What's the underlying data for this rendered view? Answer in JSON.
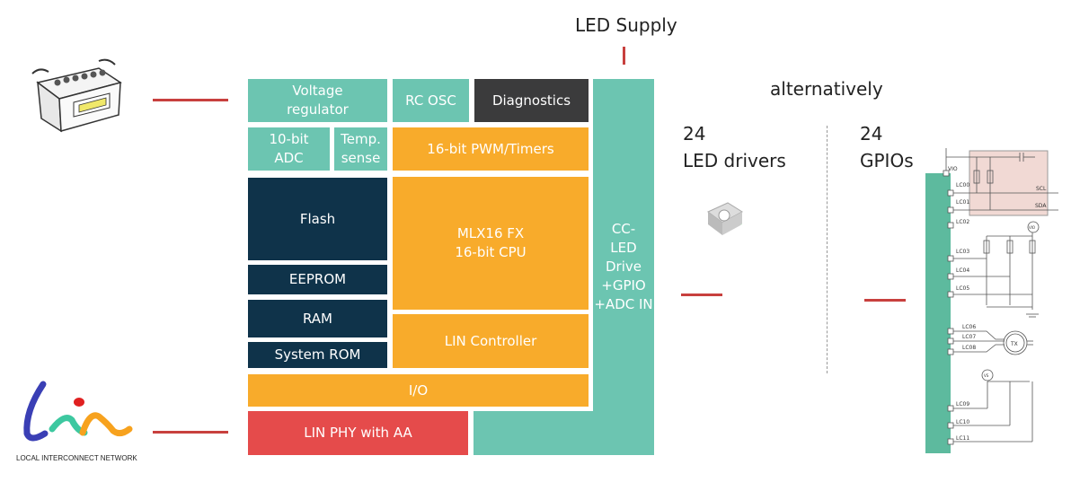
{
  "labels": {
    "led_supply": "LED Supply",
    "alternatively": "alternatively",
    "led_count": "24",
    "led_drivers": "LED drivers",
    "gpio_count": "24",
    "gpios": "GPIOs"
  },
  "blocks": {
    "voltage_regulator": "Voltage regulator",
    "rc_osc": "RC OSC",
    "diagnostics": "Diagnostics",
    "adc": "10-bit ADC",
    "temp_sense": "Temp. sense",
    "pwm_timers": "16-bit PWM/Timers",
    "flash": "Flash",
    "eeprom": "EEPROM",
    "ram": "RAM",
    "system_rom": "System ROM",
    "cpu_line1": "MLX16 FX",
    "cpu_line2": "16-bit CPU",
    "lin_controller": "LIN Controller",
    "io": "I/O",
    "lin_phy": "LIN PHY with AA",
    "led_drive": [
      "CC-",
      "LED",
      "Drive",
      "+GPIO",
      "+ADC IN"
    ]
  },
  "logo": {
    "text": "lin",
    "subtitle": "LOCAL INTERCONNECT NETWORK"
  },
  "circuit": {
    "pins": [
      "VIO",
      "LC00",
      "LC01",
      "LC02",
      "LC03",
      "LC04",
      "LC05",
      "LC06",
      "LC07",
      "LC08",
      "LC09",
      "LC10",
      "LC11"
    ],
    "bus": [
      "SCL",
      "SDA"
    ],
    "source_vio": "VIO",
    "motor": "TX",
    "source_vs": "VS"
  },
  "colors": {
    "teal": "#6cc5b1",
    "orange": "#f8ab2b",
    "navy": "#0f334a",
    "dark": "#3b3b3c",
    "red": "#e54b4b",
    "connector": "#c8403e"
  }
}
